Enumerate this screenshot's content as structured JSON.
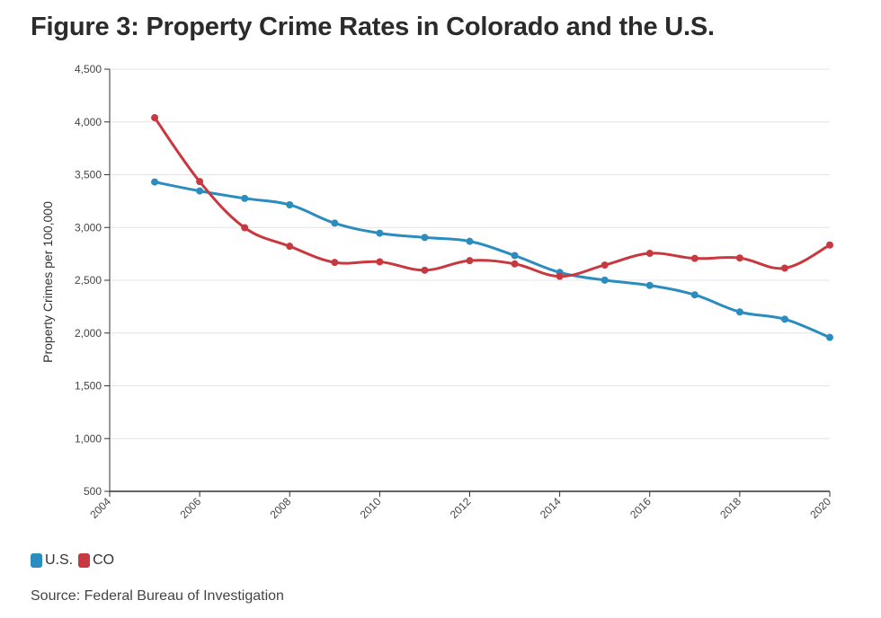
{
  "title": "Figure 3: Property Crime Rates in Colorado and the U.S.",
  "source": "Source: Federal Bureau of Investigation",
  "chart_data": {
    "type": "line",
    "title": "Figure 3: Property Crime Rates in Colorado and the U.S.",
    "ylabel": "Property Crimes per 100,000",
    "xlabel": "",
    "xlim": [
      2004,
      2020
    ],
    "ylim": [
      500,
      4500
    ],
    "x_ticks": [
      2004,
      2006,
      2008,
      2010,
      2012,
      2014,
      2016,
      2018,
      2020
    ],
    "y_ticks": [
      500,
      1000,
      1500,
      2000,
      2500,
      3000,
      3500,
      4000,
      4500
    ],
    "y_tick_labels": [
      "500",
      "1,000",
      "1,500",
      "2,000",
      "2,500",
      "3,000",
      "3,500",
      "4,000",
      "4,500"
    ],
    "grid": "horizontal",
    "legend_position": "bottom-left",
    "x": [
      2005,
      2006,
      2007,
      2008,
      2009,
      2010,
      2011,
      2012,
      2013,
      2014,
      2015,
      2016,
      2017,
      2018,
      2019,
      2020
    ],
    "series": [
      {
        "name": "U.S.",
        "color": "#2a8cbf",
        "values": [
          3431,
          3346,
          3276,
          3215,
          3041,
          2946,
          2905,
          2869,
          2734,
          2574,
          2501,
          2451,
          2362,
          2200,
          2131,
          1958
        ]
      },
      {
        "name": "CO",
        "color": "#c8393f",
        "values": [
          4040,
          3435,
          2998,
          2822,
          2669,
          2675,
          2595,
          2686,
          2655,
          2537,
          2644,
          2755,
          2707,
          2711,
          2615,
          2834
        ]
      }
    ]
  }
}
